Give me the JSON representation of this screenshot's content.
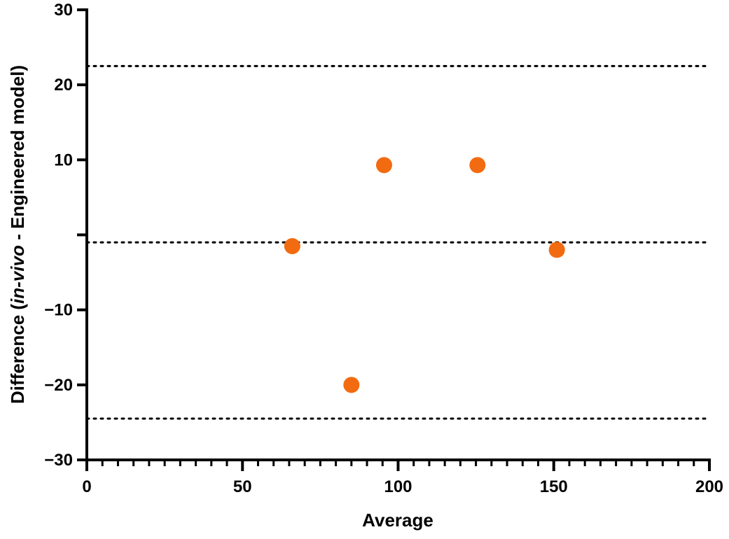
{
  "chart_data": {
    "type": "scatter",
    "title": "",
    "xlabel": "Average",
    "ylabel_parts": {
      "before": "Difference (",
      "italic": "in-vivo",
      "after": " - Engineered model)"
    },
    "xlim": [
      0,
      200
    ],
    "ylim": [
      -30,
      30
    ],
    "x_ticks": [
      "0",
      "50",
      "100",
      "150",
      "200"
    ],
    "y_ticks": [
      "−30",
      "−20",
      "−10",
      "",
      "10",
      "20",
      "30"
    ],
    "x_tick_values": [
      0,
      50,
      100,
      150,
      200
    ],
    "y_tick_values": [
      -30,
      -20,
      -10,
      0,
      10,
      20,
      30
    ],
    "x_minor_step": 5,
    "grid": false,
    "reference_lines": [
      22.5,
      -1,
      -24.5
    ],
    "points": [
      {
        "x": 66,
        "y": -1.5
      },
      {
        "x": 85,
        "y": -20
      },
      {
        "x": 95.5,
        "y": 9.3
      },
      {
        "x": 125.5,
        "y": 9.3
      },
      {
        "x": 151,
        "y": -2
      }
    ],
    "marker_color": "#F26B10",
    "reference_line_color": "#000000"
  }
}
